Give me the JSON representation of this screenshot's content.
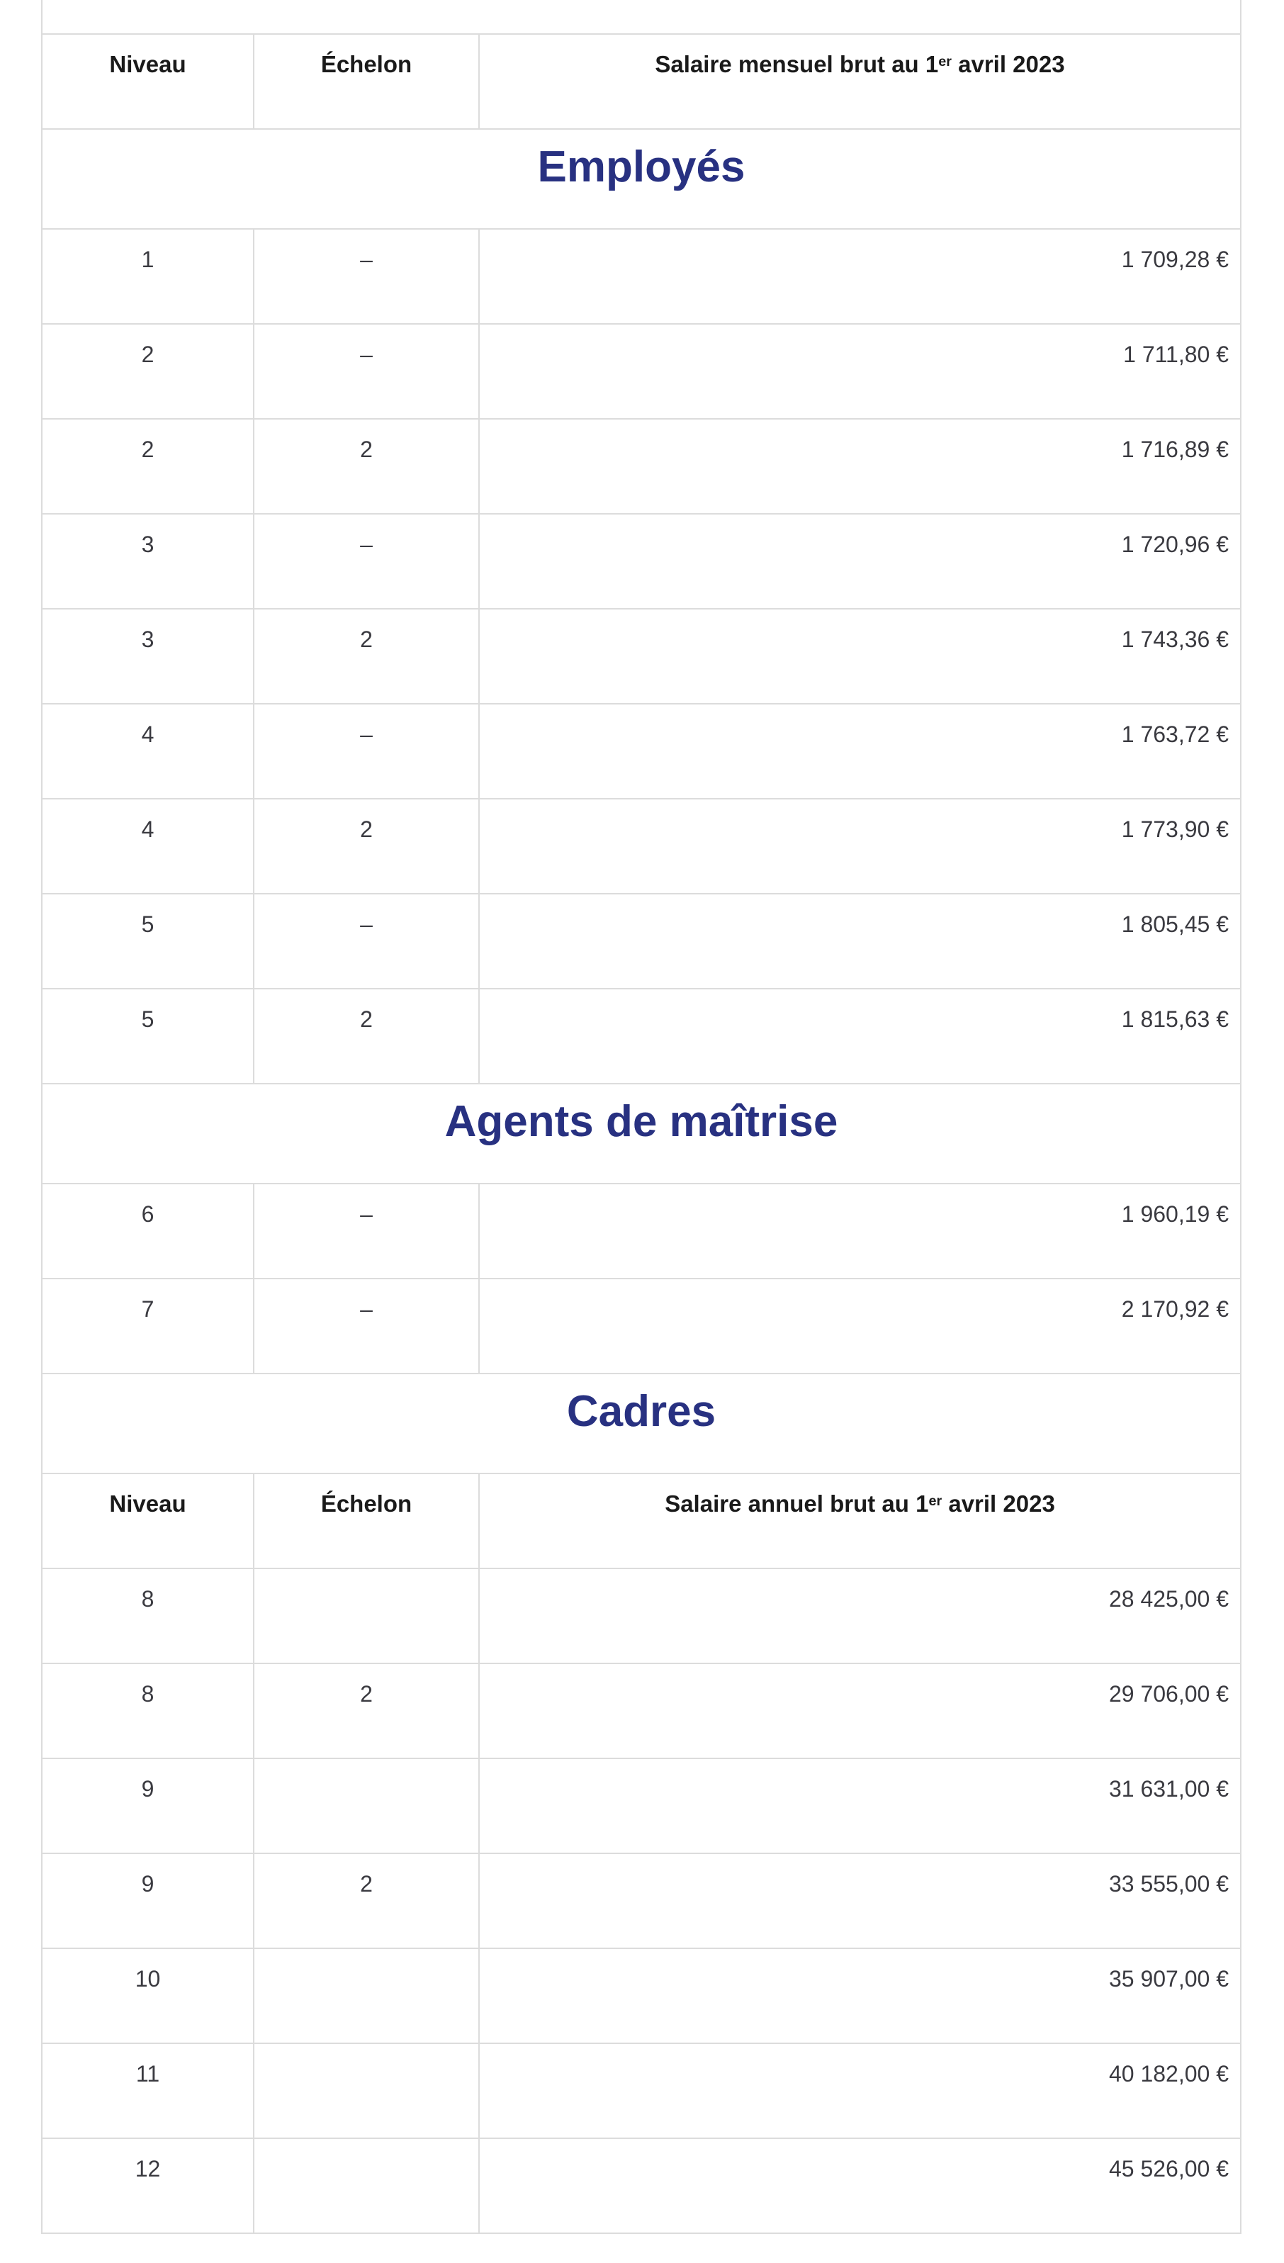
{
  "colors": {
    "section_title": "#283181",
    "body_text": "#3a3a40",
    "header_text": "#1a1a1a",
    "border": "#dcdcdc",
    "background": "#ffffff"
  },
  "table": {
    "header_monthly": {
      "niveau": "Niveau",
      "echelon": "Échelon",
      "salaire_prefix": "Salaire mensuel brut au 1",
      "salaire_sup": "er",
      "salaire_suffix": " avril 2023"
    },
    "header_annual": {
      "niveau": "Niveau",
      "echelon": "Échelon",
      "salaire_prefix": "Salaire annuel brut au 1",
      "salaire_sup": "er",
      "salaire_suffix": " avril 2023"
    },
    "sections": [
      {
        "title": "Employés",
        "rows": [
          {
            "niveau": "1",
            "echelon": "–",
            "salaire": "1 709,28 €"
          },
          {
            "niveau": "2",
            "echelon": "–",
            "salaire": "1 711,80 €"
          },
          {
            "niveau": "2",
            "echelon": "2",
            "salaire": "1 716,89 €"
          },
          {
            "niveau": "3",
            "echelon": "–",
            "salaire": "1 720,96 €"
          },
          {
            "niveau": "3",
            "echelon": "2",
            "salaire": "1 743,36 €"
          },
          {
            "niveau": "4",
            "echelon": "–",
            "salaire": "1 763,72 €"
          },
          {
            "niveau": "4",
            "echelon": "2",
            "salaire": "1 773,90 €"
          },
          {
            "niveau": "5",
            "echelon": "–",
            "salaire": "1 805,45 €"
          },
          {
            "niveau": "5",
            "echelon": "2",
            "salaire": "1 815,63 €"
          }
        ]
      },
      {
        "title": "Agents de maîtrise",
        "rows": [
          {
            "niveau": "6",
            "echelon": "–",
            "salaire": "1 960,19 €"
          },
          {
            "niveau": "7",
            "echelon": "–",
            "salaire": "2 170,92 €"
          }
        ]
      },
      {
        "title": "Cadres",
        "rows": [
          {
            "niveau": "8",
            "echelon": "",
            "salaire": "28 425,00 €"
          },
          {
            "niveau": "8",
            "echelon": "2",
            "salaire": "29 706,00 €"
          },
          {
            "niveau": "9",
            "echelon": "",
            "salaire": "31 631,00 €"
          },
          {
            "niveau": "9",
            "echelon": "2",
            "salaire": "33 555,00 €"
          },
          {
            "niveau": "10",
            "echelon": "",
            "salaire": "35 907,00 €"
          },
          {
            "niveau": "11",
            "echelon": "",
            "salaire": "40 182,00 €"
          },
          {
            "niveau": "12",
            "echelon": "",
            "salaire": "45 526,00 €"
          }
        ]
      }
    ]
  }
}
